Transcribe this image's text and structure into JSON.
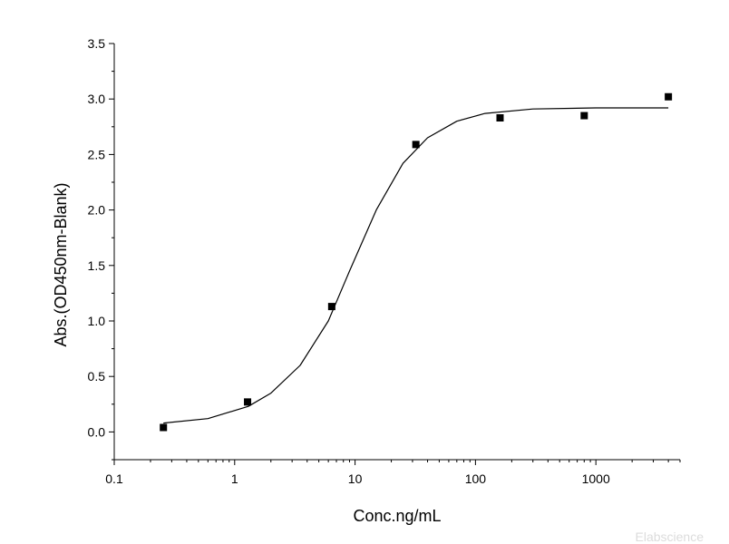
{
  "chart_data": {
    "type": "scatter",
    "xlabel": "Conc.ng/mL",
    "ylabel": "Abs.(OD450nm-Blank)",
    "x_scale": "log",
    "xlim": [
      0.1,
      5000
    ],
    "ylim": [
      -0.25,
      3.5
    ],
    "x_ticks": [
      0.1,
      1,
      10,
      100,
      1000
    ],
    "x_tick_labels": [
      "0.1",
      "1",
      "10",
      "100",
      "1000"
    ],
    "y_ticks": [
      0.0,
      0.5,
      1.0,
      1.5,
      2.0,
      2.5,
      3.0,
      3.5
    ],
    "y_tick_labels": [
      "0.0",
      "0.5",
      "1.0",
      "1.5",
      "2.0",
      "2.5",
      "3.0",
      "3.5"
    ],
    "grid": false,
    "points": [
      {
        "x": 0.256,
        "y": 0.04
      },
      {
        "x": 1.28,
        "y": 0.27
      },
      {
        "x": 6.4,
        "y": 1.13
      },
      {
        "x": 32,
        "y": 2.59
      },
      {
        "x": 160,
        "y": 2.83
      },
      {
        "x": 800,
        "y": 2.85
      },
      {
        "x": 4000,
        "y": 3.02
      }
    ],
    "fit_curve": [
      {
        "x": 0.256,
        "y": 0.08
      },
      {
        "x": 0.6,
        "y": 0.12
      },
      {
        "x": 1.3,
        "y": 0.23
      },
      {
        "x": 2.0,
        "y": 0.35
      },
      {
        "x": 3.5,
        "y": 0.6
      },
      {
        "x": 6.0,
        "y": 1.0
      },
      {
        "x": 9.0,
        "y": 1.45
      },
      {
        "x": 15,
        "y": 2.0
      },
      {
        "x": 25,
        "y": 2.42
      },
      {
        "x": 40,
        "y": 2.65
      },
      {
        "x": 70,
        "y": 2.8
      },
      {
        "x": 120,
        "y": 2.87
      },
      {
        "x": 300,
        "y": 2.91
      },
      {
        "x": 1000,
        "y": 2.92
      },
      {
        "x": 4000,
        "y": 2.92
      }
    ],
    "colors": {
      "marker": "#000000",
      "line": "#000000",
      "axis": "#000000"
    }
  },
  "watermark": "Elabscience"
}
